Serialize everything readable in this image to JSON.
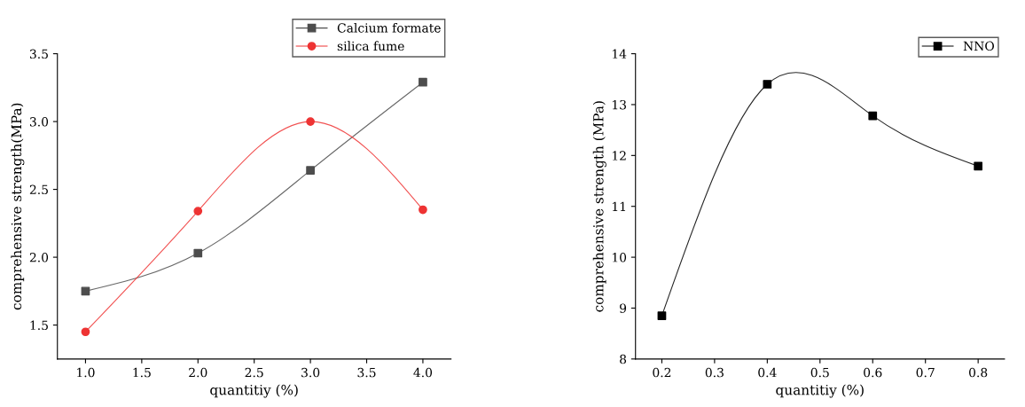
{
  "chart_data": [
    {
      "type": "line",
      "x": [
        1.0,
        2.0,
        3.0,
        4.0
      ],
      "xlabel": "quantitiy (%)",
      "ylabel": "comprehensive strength(MPa)",
      "xlim": [
        0.75,
        4.25
      ],
      "xticks": [
        {
          "value": 1.0,
          "label": "1.0"
        },
        {
          "value": 1.5,
          "label": "1.5"
        },
        {
          "value": 2.0,
          "label": "2.0"
        },
        {
          "value": 2.5,
          "label": "2.5"
        },
        {
          "value": 3.0,
          "label": "3.0"
        },
        {
          "value": 3.5,
          "label": "3.5"
        },
        {
          "value": 4.0,
          "label": "4.0"
        }
      ],
      "ylim": [
        1.25,
        3.5
      ],
      "yticks": [
        1.5,
        {
          "value": 2.0,
          "label": "2.0"
        },
        2.5,
        {
          "value": 3.0,
          "label": "3.0"
        },
        3.5
      ],
      "legend": "top right",
      "grid": false,
      "series": [
        {
          "name": "Calcium formate",
          "color": "#4d4d4d",
          "marker": "square",
          "values": [
            1.75,
            2.03,
            2.64,
            3.29
          ]
        },
        {
          "name": "silica fume",
          "color": "#ee3333",
          "marker": "circle",
          "values": [
            1.45,
            2.34,
            3.0,
            2.35
          ]
        }
      ]
    },
    {
      "type": "line",
      "x": [
        0.2,
        0.4,
        0.6,
        0.8
      ],
      "xlabel": "quantitiy (%)",
      "ylabel": "comprehensive strength (MPa)",
      "xlim": [
        0.15,
        0.85
      ],
      "xticks": [
        0.2,
        0.3,
        0.4,
        0.5,
        0.6,
        0.7,
        0.8
      ],
      "ylim": [
        8,
        14
      ],
      "yticks": [
        8,
        9,
        10,
        11,
        12,
        13,
        14
      ],
      "legend": "top right",
      "grid": false,
      "series": [
        {
          "name": "NNO",
          "color": "#000000",
          "marker": "square",
          "values": [
            8.85,
            13.4,
            12.78,
            11.79
          ]
        }
      ]
    }
  ]
}
